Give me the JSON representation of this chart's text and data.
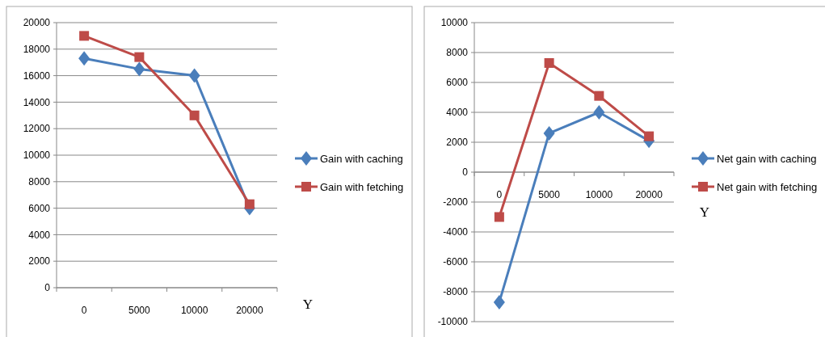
{
  "chart_data": [
    {
      "type": "line",
      "xlabel": "Y",
      "categories": [
        "0",
        "5000",
        "10000",
        "20000"
      ],
      "ylim": [
        0,
        20000
      ],
      "yticks": [
        0,
        2000,
        4000,
        6000,
        8000,
        10000,
        12000,
        14000,
        16000,
        18000,
        20000
      ],
      "grid": "y",
      "legend": "right",
      "series": [
        {
          "name": "Gain with caching",
          "color": "#4a7ebb",
          "marker": "diamond",
          "values": [
            17300,
            16500,
            16000,
            6000
          ]
        },
        {
          "name": "Gain with fetching",
          "color": "#be4b48",
          "marker": "square",
          "values": [
            19000,
            17400,
            13000,
            6300
          ]
        }
      ]
    },
    {
      "type": "line",
      "xlabel": "Y",
      "categories": [
        "0",
        "5000",
        "10000",
        "20000"
      ],
      "ylim": [
        -10000,
        10000
      ],
      "yticks": [
        -10000,
        -8000,
        -6000,
        -4000,
        -2000,
        0,
        2000,
        4000,
        6000,
        8000,
        10000
      ],
      "grid": "y",
      "legend": "right",
      "series": [
        {
          "name": "Net gain with  caching",
          "color": "#4a7ebb",
          "marker": "diamond",
          "values": [
            -8700,
            2600,
            4000,
            2100
          ]
        },
        {
          "name": "Net gain with  fetching",
          "color": "#be4b48",
          "marker": "square",
          "values": [
            -3000,
            7300,
            5100,
            2400
          ]
        }
      ]
    }
  ]
}
